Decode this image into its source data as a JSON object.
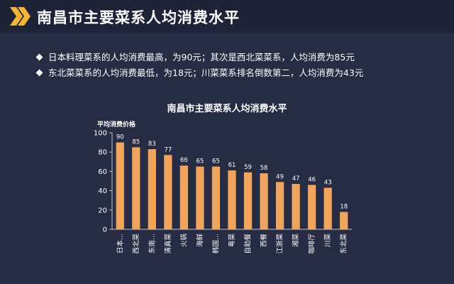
{
  "header": {
    "title": "南昌市主要菜系人均消费水平",
    "accent_color": "#f4b531",
    "icon": "double-chevron-right-icon"
  },
  "bullets": [
    "日本料理菜系的人均消费最高，为90元；其次是西北菜菜系，人均消费为85元",
    "东北菜菜系的人均消费最低，为18元；川菜菜系排名倒数第二，人均消费为43元"
  ],
  "chart_data": {
    "type": "bar",
    "title": "南昌市主要菜系人均消费水平",
    "xlabel": "",
    "ylabel": "平均消费价格",
    "categories": [
      "日本...",
      "西北菜",
      "东南...",
      "清真菜",
      "火锅",
      "海鲜",
      "韩国...",
      "粤菜",
      "自助餐",
      "西餐",
      "江浙菜",
      "湘菜",
      "咖啡厅",
      "川菜",
      "东北菜"
    ],
    "values": [
      90,
      85,
      83,
      77,
      66,
      65,
      65,
      61,
      59,
      58,
      49,
      47,
      46,
      43,
      18
    ],
    "ylim": [
      0,
      100
    ],
    "yticks": [
      0,
      20,
      40,
      60,
      80,
      100
    ],
    "grid": false,
    "data_labels": true,
    "bar_color": "#f0a55a"
  }
}
